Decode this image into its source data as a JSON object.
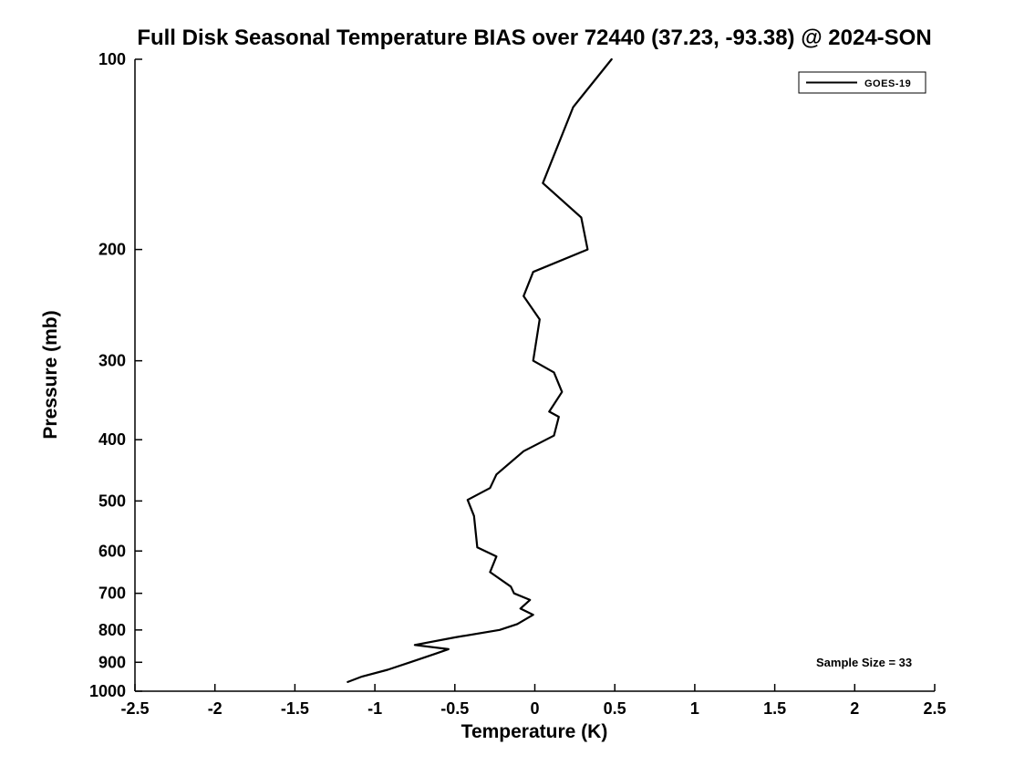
{
  "page": {
    "background_color": "#ffffff",
    "foreground_color": "#000000"
  },
  "chart_data": {
    "type": "line",
    "title": "Full Disk Seasonal Temperature BIAS over 72440 (37.23, -93.38) @ 2024-SON",
    "xlabel": "Temperature (K)",
    "ylabel": "Pressure (mb)",
    "xlim": [
      -2.5,
      2.5
    ],
    "x_ticks": [
      -2.5,
      -2,
      -1.5,
      -1,
      -0.5,
      0,
      0.5,
      1,
      1.5,
      2,
      2.5
    ],
    "x_tick_labels": [
      "-2.5",
      "-2",
      "-1.5",
      "-1",
      "-0.5",
      "0",
      "0.5",
      "1",
      "1.5",
      "2",
      "2.5"
    ],
    "ylim": [
      100,
      1000
    ],
    "y_scale": "log",
    "y_direction": "reversed",
    "y_ticks": [
      100,
      200,
      300,
      400,
      500,
      600,
      700,
      800,
      900,
      1000
    ],
    "y_tick_labels": [
      "100",
      "200",
      "300",
      "400",
      "500",
      "600",
      "700",
      "800",
      "900",
      "1000"
    ],
    "grid": false,
    "legend": {
      "position": "top-right",
      "entries": [
        {
          "label": "GOES-19",
          "color": "#000000",
          "line_style": "solid"
        }
      ]
    },
    "annotation": "Sample Size = 33",
    "series": [
      {
        "name": "GOES-19",
        "color": "#000000",
        "points_format": "[pressure_mb, bias_K]",
        "points": [
          [
            100,
            0.48
          ],
          [
            119,
            0.24
          ],
          [
            157,
            0.05
          ],
          [
            178,
            0.29
          ],
          [
            200,
            0.33
          ],
          [
            217,
            -0.01
          ],
          [
            237,
            -0.07
          ],
          [
            258,
            0.03
          ],
          [
            300,
            -0.01
          ],
          [
            313,
            0.12
          ],
          [
            336,
            0.17
          ],
          [
            361,
            0.09
          ],
          [
            368,
            0.15
          ],
          [
            394,
            0.12
          ],
          [
            417,
            -0.07
          ],
          [
            454,
            -0.24
          ],
          [
            477,
            -0.28
          ],
          [
            498,
            -0.42
          ],
          [
            528,
            -0.38
          ],
          [
            592,
            -0.36
          ],
          [
            612,
            -0.24
          ],
          [
            648,
            -0.28
          ],
          [
            683,
            -0.15
          ],
          [
            700,
            -0.13
          ],
          [
            717,
            -0.03
          ],
          [
            740,
            -0.09
          ],
          [
            757,
            -0.01
          ],
          [
            783,
            -0.11
          ],
          [
            800,
            -0.22
          ],
          [
            822,
            -0.5
          ],
          [
            845,
            -0.75
          ],
          [
            858,
            -0.54
          ],
          [
            872,
            -0.62
          ],
          [
            900,
            -0.78
          ],
          [
            925,
            -0.92
          ],
          [
            948,
            -1.08
          ],
          [
            967,
            -1.17
          ]
        ]
      }
    ]
  }
}
